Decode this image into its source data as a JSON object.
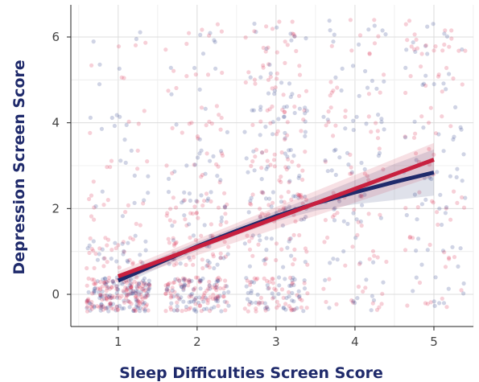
{
  "chart_data": {
    "type": "scatter",
    "xlabel": "Sleep Difficulties Screen Score",
    "ylabel": "Depression Screen Score",
    "x_ticks": [
      1,
      2,
      3,
      4,
      5
    ],
    "y_ticks": [
      0,
      2,
      4,
      6
    ],
    "xlim": [
      0.4,
      5.5
    ],
    "ylim": [
      -0.75,
      6.75
    ],
    "grid": true,
    "jitter": true,
    "point_colors": {
      "group_a": "#2a3a8a",
      "group_b": "#d9294f"
    },
    "point_density_weights": {
      "x1": [
        40,
        8,
        3,
        2,
        2,
        1,
        1
      ],
      "x2": [
        26,
        9,
        8,
        4,
        3,
        2,
        2
      ],
      "x3": [
        16,
        6,
        10,
        7,
        7,
        5,
        4
      ],
      "x4": [
        4,
        3,
        5,
        4,
        4,
        3,
        3
      ],
      "x5": [
        3,
        3,
        4,
        3,
        3,
        3,
        5
      ]
    },
    "series": [
      {
        "color": "#1f2a6b",
        "x": [
          1,
          1.5,
          2,
          2.5,
          3,
          3.5,
          4,
          4.5,
          5
        ],
        "y": [
          0.32,
          0.72,
          1.12,
          1.48,
          1.82,
          2.12,
          2.38,
          2.62,
          2.84
        ],
        "ci_low": [
          0.18,
          0.6,
          1.02,
          1.38,
          1.7,
          1.95,
          2.1,
          2.2,
          2.3
        ],
        "ci_high": [
          0.46,
          0.84,
          1.22,
          1.58,
          1.94,
          2.29,
          2.66,
          3.04,
          3.38
        ]
      },
      {
        "color": "#c8203f",
        "x": [
          1,
          5
        ],
        "y": [
          0.42,
          3.14
        ],
        "ci_low": [
          0.3,
          2.75
        ],
        "ci_high": [
          0.54,
          3.53
        ]
      }
    ]
  }
}
